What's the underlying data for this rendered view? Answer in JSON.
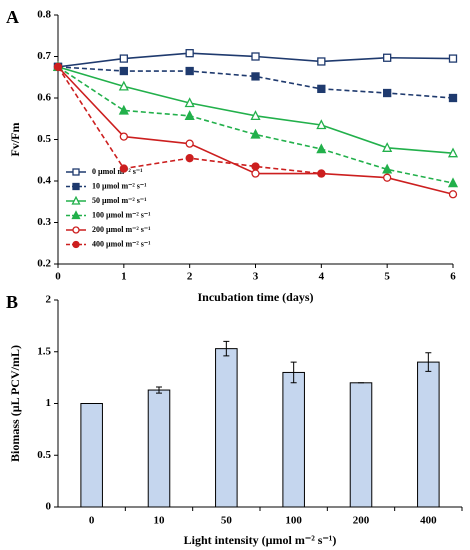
{
  "chart_data": [
    {
      "type": "line",
      "panel": "A",
      "ylabel": "Fv/Fm",
      "xlabel": "Incubation time (days)",
      "x": [
        0,
        1,
        2,
        3,
        4,
        5,
        6
      ],
      "xlim": [
        0,
        6
      ],
      "xticks": [
        0,
        1,
        2,
        3,
        4,
        5,
        6
      ],
      "ylim": [
        0.2,
        0.8
      ],
      "yticks": [
        0.2,
        0.3,
        0.4,
        0.5,
        0.6,
        0.7,
        0.8
      ],
      "legend": "lower left",
      "series": [
        {
          "name": "0 µmol m⁻² s⁻¹",
          "color": "#1f3a6e",
          "marker": "square",
          "filled": false,
          "dashed": false,
          "values": [
            0.675,
            0.695,
            0.708,
            0.7,
            0.688,
            0.697,
            0.695
          ]
        },
        {
          "name": "10 µmol m⁻² s⁻¹",
          "color": "#1f3a6e",
          "marker": "square",
          "filled": true,
          "dashed": true,
          "values": [
            0.675,
            0.665,
            0.665,
            0.652,
            0.622,
            0.612,
            0.6
          ]
        },
        {
          "name": "50 µmol m⁻² s⁻¹",
          "color": "#22b04b",
          "marker": "triangle",
          "filled": false,
          "dashed": false,
          "values": [
            0.675,
            0.628,
            0.588,
            0.557,
            0.535,
            0.48,
            0.467
          ]
        },
        {
          "name": "100 µmol m⁻² s⁻¹",
          "color": "#22b04b",
          "marker": "triangle",
          "filled": true,
          "dashed": true,
          "values": [
            0.675,
            0.57,
            0.557,
            0.512,
            0.477,
            0.428,
            0.395
          ]
        },
        {
          "name": "200 µmol m⁻² s⁻¹",
          "color": "#cc1f1f",
          "marker": "circle",
          "filled": false,
          "dashed": false,
          "values": [
            0.675,
            0.507,
            0.49,
            0.418,
            0.418,
            0.408,
            0.368
          ]
        },
        {
          "name": "400 µmol m⁻² s⁻¹",
          "color": "#cc1f1f",
          "marker": "circle",
          "filled": true,
          "dashed": true,
          "values": [
            0.675,
            0.43,
            0.455,
            0.435,
            0.418,
            null,
            null
          ]
        }
      ]
    },
    {
      "type": "bar",
      "panel": "B",
      "ylabel": "Biomass (µL PCV/mL)",
      "xlabel": "Light intensity (µmol m⁻² s⁻¹)",
      "categories": [
        "0",
        "10",
        "50",
        "100",
        "200",
        "400"
      ],
      "values": [
        1.0,
        1.13,
        1.53,
        1.3,
        1.2,
        1.4
      ],
      "errors": [
        0,
        0.03,
        0.07,
        0.1,
        0,
        0.09
      ],
      "color": "#c5d6ee",
      "ylim": [
        0,
        2
      ],
      "yticks": [
        0,
        0.5,
        1,
        1.5,
        2
      ]
    }
  ]
}
